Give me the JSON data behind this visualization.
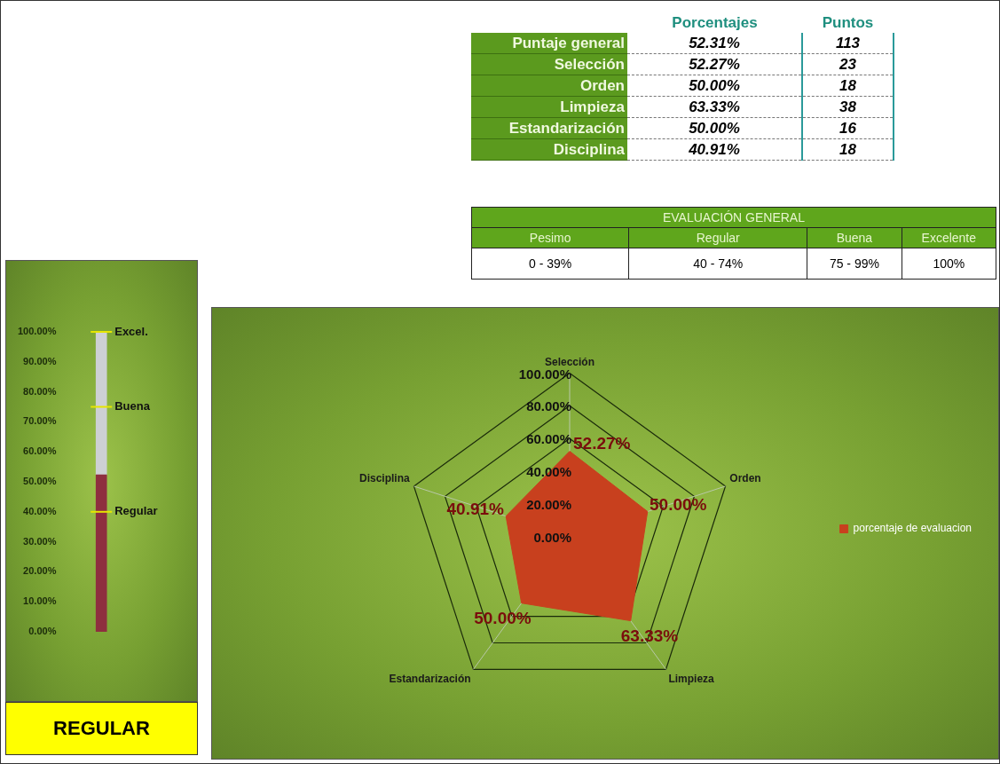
{
  "chart_data": [
    {
      "type": "other",
      "categories": [
        "Puntaje general",
        "Selección",
        "Orden",
        "Limpieza",
        "Estandarización",
        "Disciplina"
      ],
      "series": [
        {
          "name": "Porcentajes",
          "values": [
            52.31,
            52.27,
            50.0,
            63.33,
            50.0,
            40.91
          ],
          "value_labels": [
            "52.31%",
            "52.27%",
            "50.00%",
            "63.33%",
            "50.00%",
            "40.91%"
          ]
        },
        {
          "name": "Puntos",
          "values": [
            113,
            23,
            18,
            38,
            16,
            18
          ]
        }
      ],
      "data_labels": true
    },
    {
      "type": "other",
      "title": "EVALUACIÓN GENERAL",
      "categories": [
        "Pesimo",
        "Regular",
        "Buena",
        "Excelente"
      ],
      "annotations": [
        "0 - 39%",
        "40 - 74%",
        "75 - 99%",
        "100%"
      ]
    },
    {
      "type": "bar",
      "categories": [
        null
      ],
      "stacked": true,
      "series": [
        {
          "color": "#8e2f3f",
          "values": [
            52.31
          ]
        },
        {
          "color": "#cdd0d4",
          "values": [
            47.69
          ]
        }
      ],
      "ylim": [
        0,
        100
      ],
      "yticks": [
        {
          "value": 0,
          "label": "0.00%"
        },
        {
          "value": 10,
          "label": "10.00%"
        },
        {
          "value": 20,
          "label": "20.00%"
        },
        {
          "value": 30,
          "label": "30.00%"
        },
        {
          "value": 40,
          "label": "40.00%"
        },
        {
          "value": 50,
          "label": "50.00%"
        },
        {
          "value": 60,
          "label": "60.00%"
        },
        {
          "value": 70,
          "label": "70.00%"
        },
        {
          "value": 80,
          "label": "80.00%"
        },
        {
          "value": 90,
          "label": "90.00%"
        },
        {
          "value": 100,
          "label": "100.00%"
        }
      ],
      "ref_lines": [
        {
          "axis": "y",
          "value": 100,
          "label": "Excel.",
          "color": "#e6e600"
        },
        {
          "axis": "y",
          "value": 75,
          "label": "Buena",
          "color": "#e6e600"
        },
        {
          "axis": "y",
          "value": 40,
          "label": "Regular",
          "color": "#e6e600"
        }
      ],
      "annotations": [
        "REGULAR"
      ],
      "grid": false,
      "legend": false
    },
    {
      "type": "radar",
      "categories": [
        "Selección",
        "Orden",
        "Limpieza",
        "Estandarización",
        "Disciplina"
      ],
      "series": [
        {
          "name": "porcentaje de evaluacion",
          "color": "#c8401e",
          "values": [
            52.27,
            50.0,
            63.33,
            50.0,
            40.91
          ],
          "value_labels": [
            "52.27%",
            "50.00%",
            "63.33%",
            "50.00%",
            "40.91%"
          ]
        }
      ],
      "ylim": [
        0,
        100
      ],
      "yticks": [
        {
          "value": 0,
          "label": "0.00%"
        },
        {
          "value": 20,
          "label": "20.00%"
        },
        {
          "value": 40,
          "label": "40.00%"
        },
        {
          "value": 60,
          "label": "60.00%"
        },
        {
          "value": 80,
          "label": "80.00%"
        },
        {
          "value": 100,
          "label": "100.00%"
        }
      ],
      "grid": true,
      "legend": "right",
      "marker": "none"
    }
  ]
}
